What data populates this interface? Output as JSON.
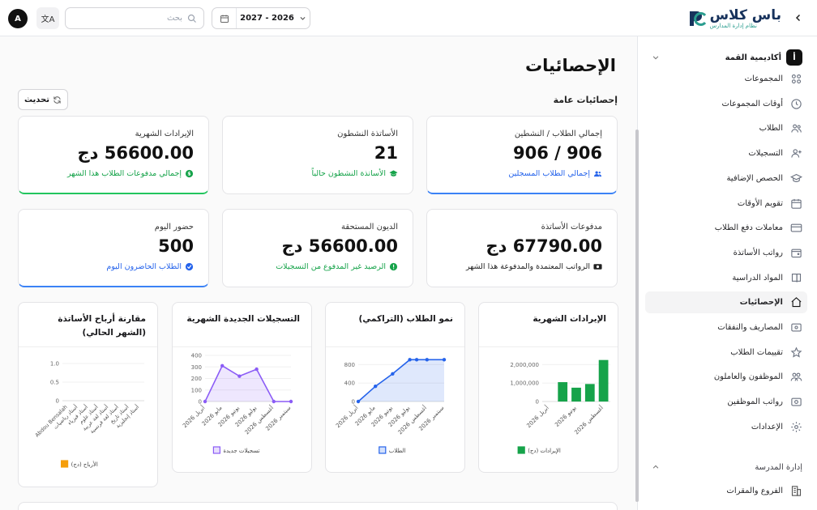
{
  "header": {
    "avatar_letter": "A",
    "search_placeholder": "بحث",
    "year_value": "2027 - 2026",
    "logo_name": "باس كلاس",
    "logo_tagline": "نظام إدارة المدارس",
    "lang_glyph": "文A"
  },
  "sidebar": {
    "org_badge": "أ",
    "org_name": "أكاديمية القمة",
    "items": [
      {
        "label": "المجموعات",
        "icon": "groups-grid-icon"
      },
      {
        "label": "أوقات المجموعات",
        "icon": "clock-icon"
      },
      {
        "label": "الطلاب",
        "icon": "users-icon"
      },
      {
        "label": "التسجيلات",
        "icon": "user-plus-icon"
      },
      {
        "label": "الحصص الإضافية",
        "icon": "graduation-cap-icon"
      },
      {
        "label": "تقويم الأوقات",
        "icon": "calendar-icon"
      },
      {
        "label": "معاملات دفع الطلاب",
        "icon": "credit-card-icon"
      },
      {
        "label": "رواتب الأساتذة",
        "icon": "wallet-icon"
      },
      {
        "label": "المواد الدراسية",
        "icon": "book-icon"
      },
      {
        "label": "الإحصائيات",
        "icon": "home-icon",
        "active": true
      },
      {
        "label": "المصاريف والنفقات",
        "icon": "receipt-icon"
      },
      {
        "label": "تقييمات الطلاب",
        "icon": "star-icon"
      },
      {
        "label": "الموظفون والعاملون",
        "icon": "staff-icon"
      },
      {
        "label": "رواتب الموظفين",
        "icon": "payroll-icon"
      },
      {
        "label": "الإعدادات",
        "icon": "gear-icon"
      }
    ],
    "school_section": "إدارة المدرسة",
    "branches": "الفروع والمقرات"
  },
  "main": {
    "title": "الإحصائيات",
    "section": "إحصائيات عامة",
    "refresh_label": "تحديث",
    "cards": [
      {
        "title": "إجمالي الطلاب / النشطين",
        "value": "906 / 906",
        "sub": "إجمالي الطلاب المسجلين",
        "tone": "blue",
        "icon": "users-icon"
      },
      {
        "title": "الأساتذة النشطون",
        "value": "21",
        "sub": "الأساتذة النشطون حالياً",
        "tone": "green",
        "icon": "graduation-cap-icon"
      },
      {
        "title": "الإيرادات الشهرية",
        "value": "56600.00 دج",
        "sub": "إجمالي مدفوعات الطلاب هذا الشهر",
        "tone": "green",
        "icon": "dollar-icon"
      },
      {
        "title": "مدفوعات الأساتذة",
        "value": "67790.00 دج",
        "sub": "الرواتب المعتمدة والمدفوعة هذا الشهر",
        "tone": "dark",
        "icon": "cash-icon"
      },
      {
        "title": "الديون المستحقة",
        "value": "56600.00 دج",
        "sub": "الرصيد غير المدفوع من التسجيلات",
        "tone": "green",
        "icon": "alert-icon"
      },
      {
        "title": "حضور اليوم",
        "value": "500",
        "sub": "الطلاب الحاضرون اليوم",
        "tone": "blue",
        "icon": "check-icon"
      }
    ]
  },
  "chart_data": [
    {
      "type": "bar",
      "title": "الإيرادات الشهرية",
      "categories": [
        "أبريل 2026",
        "",
        "يونيو 2026",
        "",
        "أغسطس 2026"
      ],
      "series": [
        {
          "name": "الإيرادات (دج)",
          "values": [
            0,
            1050000,
            750000,
            950000,
            2250000
          ]
        }
      ],
      "yticks": [
        "0",
        "1,000,000",
        "2,000,000"
      ],
      "ylim": [
        0,
        2500000
      ],
      "color": "#16a34a",
      "legend": "bottom"
    },
    {
      "type": "area",
      "title": "نمو الطلاب (التراكمي)",
      "categories": [
        "أبريل 2026",
        "مايو 2026",
        "يونيو 2026",
        "يوليو 2026",
        "أغسطس 2026",
        "سبتمبر 2026"
      ],
      "series": [
        {
          "name": "الطلاب",
          "values": [
            0,
            330,
            600,
            906,
            906,
            906
          ]
        }
      ],
      "extra_points": [
        {
          "x": 3.4,
          "y": 906
        }
      ],
      "yticks": [
        "0",
        "400",
        "800"
      ],
      "ylim": [
        0,
        1000
      ],
      "color": "#2563eb",
      "legend": "bottom"
    },
    {
      "type": "area",
      "title": "التسجيلات الجديدة الشهرية",
      "categories": [
        "أبريل 2026",
        "مايو 2026",
        "يونيو 2026",
        "يوليو 2026",
        "أغسطس 2026",
        "سبتمبر 2026"
      ],
      "series": [
        {
          "name": "تسجيلات جديدة",
          "values": [
            0,
            310,
            220,
            280,
            0,
            0
          ]
        }
      ],
      "yticks": [
        "0",
        "100",
        "200",
        "300",
        "400"
      ],
      "ylim": [
        0,
        400
      ],
      "color": "#8b5cf6",
      "legend": "bottom"
    },
    {
      "type": "bar",
      "title": "مقارنة أرباح الأساتذة (الشهر الحالي)",
      "categories": [
        "Abdou Bensalah",
        "أستاذ رياضيات",
        "أستاذ فيزياء",
        "أستاذ علوم",
        "أستاذ لغة عربية",
        "أستاذ لغة فرنسية",
        "أستاذ تاريخ",
        "أستاذ إنجليزية"
      ],
      "series": [
        {
          "name": "الأرباح (دج)",
          "values": [
            0,
            0,
            0,
            0,
            0,
            0,
            0,
            0
          ]
        }
      ],
      "yticks": [
        "0",
        "0.5",
        "1.0"
      ],
      "ylim": [
        0,
        1
      ],
      "color": "#f59e0b",
      "legend": "bottom"
    }
  ]
}
